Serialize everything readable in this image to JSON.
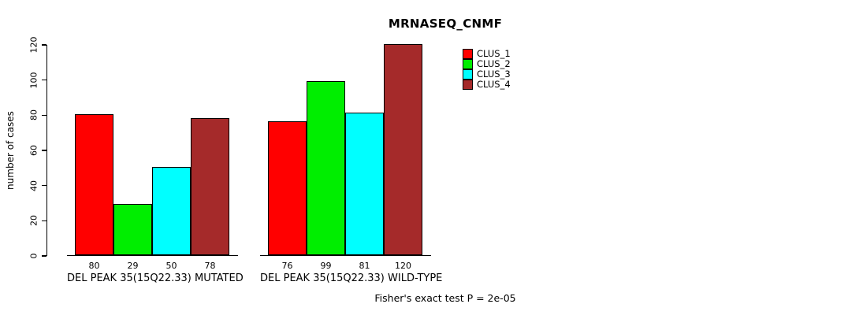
{
  "chart_data": {
    "type": "bar",
    "title": "MRNASEQ_CNMF",
    "ylabel": "number of cases",
    "xlabel": "",
    "ylim": [
      0,
      120
    ],
    "yticks": [
      0,
      20,
      40,
      60,
      80,
      100,
      120
    ],
    "grid": false,
    "legend_position": "top-right",
    "bar_value_labels": true,
    "categories": [
      "DEL PEAK 35(15Q22.33) MUTATED",
      "DEL PEAK 35(15Q22.33) WILD-TYPE"
    ],
    "series": [
      {
        "name": "CLUS_1",
        "color": "#FF0000",
        "values": [
          80,
          76
        ]
      },
      {
        "name": "CLUS_2",
        "color": "#00EE00",
        "values": [
          29,
          99
        ]
      },
      {
        "name": "CLUS_3",
        "color": "#00FFFF",
        "values": [
          50,
          81
        ]
      },
      {
        "name": "CLUS_4",
        "color": "#A52A2A",
        "values": [
          78,
          120
        ]
      }
    ],
    "annotation": "Fisher's exact test P = 2e-05"
  }
}
